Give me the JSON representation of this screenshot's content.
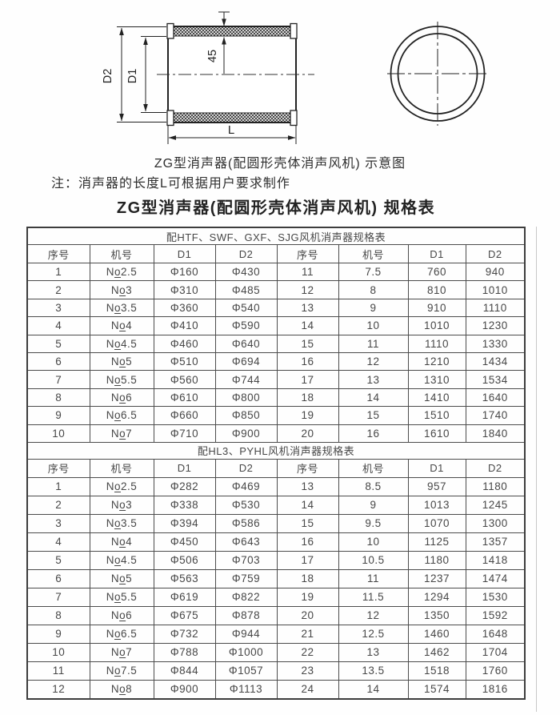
{
  "page": {
    "caption": "ZG型消声器(配圆形壳体消声风机) 示意图",
    "note": "注：消声器的长度L可根据用户要求制作",
    "title": "ZG型消声器(配圆形壳体消声风机) 规格表"
  },
  "drawing": {
    "labels": {
      "d2": "D2",
      "d1": "D1",
      "liner_thickness": "45",
      "length": "L"
    }
  },
  "tables": [
    {
      "section_title": "配HTF、SWF、GXF、SJG风机消声器规格表",
      "columns": [
        "序号",
        "机号",
        "D1",
        "D2",
        "序号",
        "机号",
        "D1",
        "D2"
      ],
      "rows": [
        [
          "1",
          "No2.5",
          "Φ160",
          "Φ430",
          "11",
          "7.5",
          "760",
          "940"
        ],
        [
          "2",
          "No3",
          "Φ310",
          "Φ485",
          "12",
          "8",
          "810",
          "1010"
        ],
        [
          "3",
          "No3.5",
          "Φ360",
          "Φ540",
          "13",
          "9",
          "910",
          "1110"
        ],
        [
          "4",
          "No4",
          "Φ410",
          "Φ590",
          "14",
          "10",
          "1010",
          "1230"
        ],
        [
          "5",
          "No4.5",
          "Φ460",
          "Φ640",
          "15",
          "11",
          "1110",
          "1330"
        ],
        [
          "6",
          "No5",
          "Φ510",
          "Φ694",
          "16",
          "12",
          "1210",
          "1434"
        ],
        [
          "7",
          "No5.5",
          "Φ560",
          "Φ744",
          "17",
          "13",
          "1310",
          "1534"
        ],
        [
          "8",
          "No6",
          "Φ610",
          "Φ800",
          "18",
          "14",
          "1410",
          "1640"
        ],
        [
          "9",
          "No6.5",
          "Φ660",
          "Φ850",
          "19",
          "15",
          "1510",
          "1740"
        ],
        [
          "10",
          "No7",
          "Φ710",
          "Φ900",
          "20",
          "16",
          "1610",
          "1840"
        ]
      ]
    },
    {
      "section_title": "配HL3、PYHL风机消声器规格表",
      "columns": [
        "序号",
        "机号",
        "D1",
        "D2",
        "序号",
        "机号",
        "D1",
        "D2"
      ],
      "rows": [
        [
          "1",
          "No2.5",
          "Φ282",
          "Φ469",
          "13",
          "8.5",
          "957",
          "1180"
        ],
        [
          "2",
          "No3",
          "Φ338",
          "Φ530",
          "14",
          "9",
          "1013",
          "1245"
        ],
        [
          "3",
          "No3.5",
          "Φ394",
          "Φ586",
          "15",
          "9.5",
          "1070",
          "1300"
        ],
        [
          "4",
          "No4",
          "Φ450",
          "Φ643",
          "16",
          "10",
          "1125",
          "1357"
        ],
        [
          "5",
          "No4.5",
          "Φ506",
          "Φ703",
          "17",
          "10.5",
          "1180",
          "1418"
        ],
        [
          "6",
          "No5",
          "Φ563",
          "Φ759",
          "18",
          "11",
          "1237",
          "1474"
        ],
        [
          "7",
          "No5.5",
          "Φ619",
          "Φ822",
          "19",
          "11.5",
          "1294",
          "1530"
        ],
        [
          "8",
          "No6",
          "Φ675",
          "Φ878",
          "20",
          "12",
          "1350",
          "1592"
        ],
        [
          "9",
          "No6.5",
          "Φ732",
          "Φ944",
          "21",
          "12.5",
          "1460",
          "1648"
        ],
        [
          "10",
          "No7",
          "Φ788",
          "Φ1000",
          "22",
          "13",
          "1462",
          "1704"
        ],
        [
          "11",
          "No7.5",
          "Φ844",
          "Φ1057",
          "23",
          "13.5",
          "1518",
          "1760"
        ],
        [
          "12",
          "No8",
          "Φ900",
          "Φ1113",
          "24",
          "14",
          "1574",
          "1816"
        ]
      ]
    }
  ]
}
